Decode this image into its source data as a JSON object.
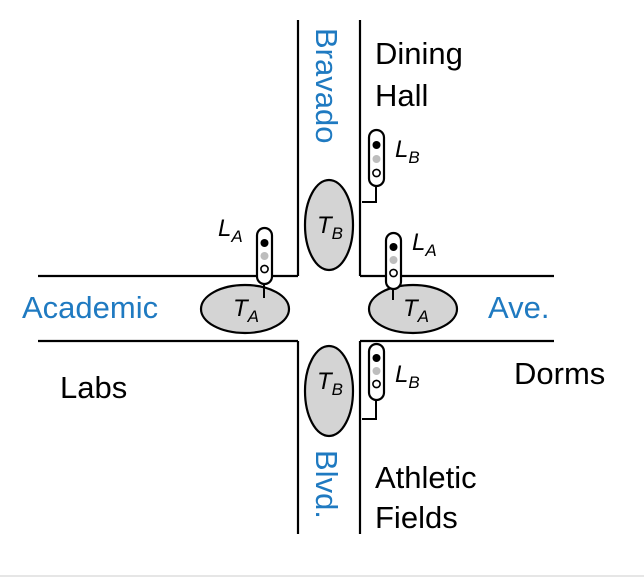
{
  "roads": {
    "bravado": "Bravado",
    "blvd": "Blvd.",
    "academic": "Academic",
    "ave": "Ave."
  },
  "places": {
    "dining_line1": "Dining",
    "dining_line2": "Hall",
    "labs": "Labs",
    "dorms": "Dorms",
    "athletic_line1": "Athletic",
    "athletic_line2": "Fields"
  },
  "symbols": {
    "light_letter": "L",
    "sensor_letter": "T",
    "sub_a": "A",
    "sub_b": "B"
  },
  "colors": {
    "road_label": "#1f7ac1",
    "sensor_fill": "#d4d4d4"
  }
}
